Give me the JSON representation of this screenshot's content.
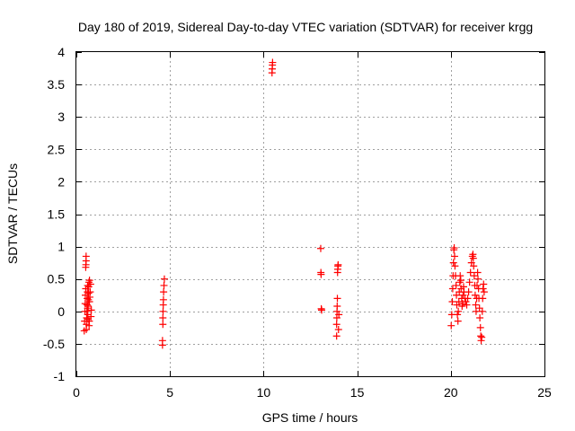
{
  "chart_data": {
    "type": "scatter",
    "title": "Day 180 of 2019, Sidereal Day-to-day VTEC variation (SDTVAR) for receiver krgg",
    "xlabel": "GPS time / hours",
    "ylabel": "SDTVAR / TECUs",
    "xlim": [
      0,
      25
    ],
    "ylim": [
      -1,
      4
    ],
    "xticks": [
      0,
      5,
      10,
      15,
      20,
      25
    ],
    "xtick_labels": [
      "0",
      "5",
      "10",
      "15",
      "20",
      "25"
    ],
    "yticks": [
      -1,
      -0.5,
      0,
      0.5,
      1,
      1.5,
      2,
      2.5,
      3,
      3.5,
      4
    ],
    "ytick_labels": [
      "-1",
      "-0.5",
      "0",
      "0.5",
      "1",
      "1.5",
      "2",
      "2.5",
      "3",
      "3.5",
      "4"
    ],
    "grid": true,
    "marker": "+",
    "color": "#ff0000",
    "series": [
      {
        "name": "SDTVAR",
        "points": [
          [
            0.42,
            -0.3
          ],
          [
            0.44,
            -0.15
          ],
          [
            0.46,
            0.0
          ],
          [
            0.47,
            0.12
          ],
          [
            0.48,
            0.25
          ],
          [
            0.5,
            0.35
          ],
          [
            0.5,
            0.68
          ],
          [
            0.51,
            0.72
          ],
          [
            0.52,
            0.78
          ],
          [
            0.52,
            0.85
          ],
          [
            0.53,
            -0.28
          ],
          [
            0.54,
            -0.2
          ],
          [
            0.55,
            -0.1
          ],
          [
            0.56,
            0.0
          ],
          [
            0.57,
            0.1
          ],
          [
            0.58,
            0.2
          ],
          [
            0.59,
            0.3
          ],
          [
            0.6,
            0.4
          ],
          [
            0.6,
            0.05
          ],
          [
            0.61,
            -0.05
          ],
          [
            0.62,
            -0.12
          ],
          [
            0.63,
            0.08
          ],
          [
            0.64,
            0.18
          ],
          [
            0.65,
            0.28
          ],
          [
            0.66,
            0.38
          ],
          [
            0.67,
            0.45
          ],
          [
            0.68,
            -0.22
          ],
          [
            0.69,
            -0.15
          ],
          [
            0.7,
            0.15
          ],
          [
            0.7,
            0.48
          ],
          [
            0.72,
            0.22
          ],
          [
            0.74,
            0.3
          ],
          [
            0.76,
            0.42
          ],
          [
            0.78,
            -0.08
          ],
          [
            0.8,
            0.02
          ],
          [
            4.6,
            -0.52
          ],
          [
            4.6,
            -0.45
          ],
          [
            4.62,
            -0.2
          ],
          [
            4.62,
            -0.1
          ],
          [
            4.63,
            0.0
          ],
          [
            4.64,
            0.1
          ],
          [
            4.65,
            0.18
          ],
          [
            4.66,
            0.3
          ],
          [
            4.68,
            0.4
          ],
          [
            4.7,
            0.5
          ],
          [
            10.45,
            3.68
          ],
          [
            10.46,
            3.74
          ],
          [
            10.47,
            3.8
          ],
          [
            10.48,
            3.84
          ],
          [
            13.05,
            0.97
          ],
          [
            13.06,
            0.6
          ],
          [
            13.07,
            0.57
          ],
          [
            13.08,
            0.04
          ],
          [
            13.1,
            0.02
          ],
          [
            13.9,
            -0.38
          ],
          [
            13.9,
            -0.2
          ],
          [
            13.91,
            -0.1
          ],
          [
            13.92,
            0.0
          ],
          [
            13.93,
            0.08
          ],
          [
            13.94,
            0.2
          ],
          [
            13.95,
            0.6
          ],
          [
            13.96,
            0.65
          ],
          [
            13.97,
            0.7
          ],
          [
            13.98,
            0.72
          ],
          [
            14.0,
            -0.28
          ],
          [
            14.02,
            -0.05
          ],
          [
            20.02,
            -0.22
          ],
          [
            20.05,
            -0.05
          ],
          [
            20.08,
            0.15
          ],
          [
            20.1,
            0.35
          ],
          [
            20.12,
            0.55
          ],
          [
            20.14,
            0.75
          ],
          [
            20.16,
            0.95
          ],
          [
            20.18,
            0.98
          ],
          [
            20.2,
            0.85
          ],
          [
            20.22,
            0.7
          ],
          [
            20.25,
            0.55
          ],
          [
            20.28,
            0.4
          ],
          [
            20.3,
            0.25
          ],
          [
            20.32,
            0.1
          ],
          [
            20.35,
            -0.05
          ],
          [
            20.38,
            -0.15
          ],
          [
            20.4,
            0.0
          ],
          [
            20.43,
            0.15
          ],
          [
            20.45,
            0.3
          ],
          [
            20.48,
            0.45
          ],
          [
            20.5,
            0.55
          ],
          [
            20.53,
            0.48
          ],
          [
            20.55,
            0.35
          ],
          [
            20.58,
            0.2
          ],
          [
            20.6,
            0.08
          ],
          [
            20.63,
            0.12
          ],
          [
            20.65,
            0.25
          ],
          [
            20.68,
            0.38
          ],
          [
            20.7,
            0.3
          ],
          [
            20.75,
            0.2
          ],
          [
            20.8,
            0.15
          ],
          [
            20.85,
            0.1
          ],
          [
            20.9,
            0.2
          ],
          [
            20.95,
            0.3
          ],
          [
            21.0,
            0.45
          ],
          [
            21.05,
            0.6
          ],
          [
            21.1,
            0.75
          ],
          [
            21.15,
            0.85
          ],
          [
            21.18,
            0.88
          ],
          [
            21.2,
            0.82
          ],
          [
            21.22,
            0.7
          ],
          [
            21.25,
            0.55
          ],
          [
            21.28,
            0.4
          ],
          [
            21.3,
            0.25
          ],
          [
            21.33,
            0.1
          ],
          [
            21.35,
            0.0
          ],
          [
            21.38,
            0.2
          ],
          [
            21.4,
            0.4
          ],
          [
            21.43,
            0.6
          ],
          [
            21.45,
            0.5
          ],
          [
            21.48,
            0.35
          ],
          [
            21.5,
            0.2
          ],
          [
            21.53,
            0.05
          ],
          [
            21.55,
            -0.1
          ],
          [
            21.58,
            -0.25
          ],
          [
            21.6,
            -0.38
          ],
          [
            21.62,
            -0.45
          ],
          [
            21.65,
            -0.4
          ],
          [
            21.68,
            0.0
          ],
          [
            21.7,
            0.2
          ],
          [
            21.72,
            0.35
          ],
          [
            21.75,
            0.42
          ],
          [
            21.78,
            0.3
          ]
        ]
      }
    ]
  }
}
